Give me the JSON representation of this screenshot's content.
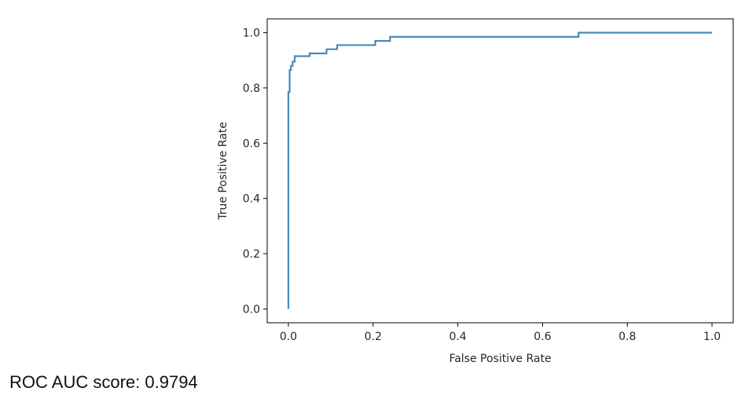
{
  "chart_data": {
    "type": "line",
    "title": "",
    "xlabel": "False Positive Rate",
    "ylabel": "True Positive Rate",
    "xlim": [
      -0.05,
      1.05
    ],
    "ylim": [
      -0.05,
      1.05
    ],
    "xticks": [
      "0.0",
      "0.2",
      "0.4",
      "0.6",
      "0.8",
      "1.0"
    ],
    "yticks": [
      "0.0",
      "0.2",
      "0.4",
      "0.6",
      "0.8",
      "1.0"
    ],
    "grid": false,
    "line_color": "#4a8ab8",
    "series": [
      {
        "x": [
          0,
          0,
          0.003,
          0.003,
          0.006,
          0.006,
          0.01,
          0.01,
          0.015,
          0.015,
          0.05,
          0.05,
          0.09,
          0.09,
          0.115,
          0.115,
          0.205,
          0.205,
          0.24,
          0.24,
          0.685,
          0.685,
          1.0
        ],
        "y": [
          0,
          0.785,
          0.785,
          0.865,
          0.865,
          0.88,
          0.88,
          0.895,
          0.895,
          0.915,
          0.915,
          0.925,
          0.925,
          0.94,
          0.94,
          0.955,
          0.955,
          0.97,
          0.97,
          0.985,
          0.985,
          1.0,
          1.0
        ]
      }
    ]
  },
  "auc_text": "ROC AUC score: 0.9794"
}
